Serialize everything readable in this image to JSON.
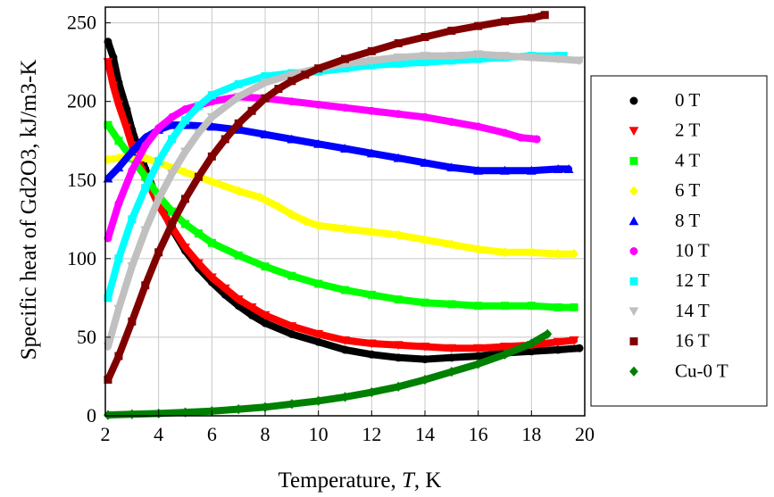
{
  "chart_data": {
    "type": "scatter",
    "title": "",
    "xlabel": {
      "prefix": "Temperature, ",
      "italic": "T",
      "suffix": ", K"
    },
    "ylabel": "Specific heat of Gd2O3, kJ/m3-K",
    "xlim": [
      2,
      20
    ],
    "ylim": [
      0,
      260
    ],
    "xticks": [
      2,
      4,
      6,
      8,
      10,
      12,
      14,
      16,
      18,
      20
    ],
    "yticks": [
      0,
      50,
      100,
      150,
      200,
      250
    ],
    "grid": true,
    "legend_position": "right",
    "series": [
      {
        "name": "0 T",
        "color": "#000000",
        "marker": "circle",
        "points": [
          [
            2.1,
            238
          ],
          [
            2.3,
            228
          ],
          [
            2.5,
            212
          ],
          [
            2.8,
            195
          ],
          [
            3,
            182
          ],
          [
            3.5,
            157
          ],
          [
            4,
            136
          ],
          [
            4.5,
            119
          ],
          [
            5,
            105
          ],
          [
            5.5,
            94
          ],
          [
            6,
            85
          ],
          [
            6.5,
            77
          ],
          [
            7,
            70
          ],
          [
            7.5,
            64
          ],
          [
            8,
            59
          ],
          [
            9,
            52
          ],
          [
            10,
            47
          ],
          [
            11,
            42
          ],
          [
            12,
            39
          ],
          [
            13,
            37
          ],
          [
            14,
            36
          ],
          [
            15,
            37
          ],
          [
            16,
            38
          ],
          [
            17,
            40
          ],
          [
            18,
            41
          ],
          [
            19,
            42
          ],
          [
            19.8,
            43
          ]
        ]
      },
      {
        "name": "2 T",
        "color": "#ff0000",
        "marker": "triangle-down",
        "points": [
          [
            2.1,
            225
          ],
          [
            2.3,
            210
          ],
          [
            2.5,
            198
          ],
          [
            2.8,
            183
          ],
          [
            3,
            172
          ],
          [
            3.5,
            152
          ],
          [
            4,
            134
          ],
          [
            4.5,
            120
          ],
          [
            5,
            107
          ],
          [
            5.5,
            97
          ],
          [
            6,
            88
          ],
          [
            6.5,
            81
          ],
          [
            7,
            74
          ],
          [
            7.5,
            69
          ],
          [
            8,
            64
          ],
          [
            9,
            57
          ],
          [
            10,
            52
          ],
          [
            11,
            48
          ],
          [
            12,
            46
          ],
          [
            13,
            45
          ],
          [
            14,
            44
          ],
          [
            15,
            43
          ],
          [
            16,
            43
          ],
          [
            17,
            44
          ],
          [
            18,
            45
          ],
          [
            19,
            47
          ],
          [
            19.6,
            48
          ]
        ]
      },
      {
        "name": "4 T",
        "color": "#00ff00",
        "marker": "square",
        "points": [
          [
            2.1,
            185
          ],
          [
            2.5,
            175
          ],
          [
            3,
            164
          ],
          [
            3.5,
            152
          ],
          [
            4,
            140
          ],
          [
            4.5,
            130
          ],
          [
            5,
            122
          ],
          [
            5.5,
            116
          ],
          [
            6,
            110
          ],
          [
            7,
            102
          ],
          [
            8,
            95
          ],
          [
            9,
            89
          ],
          [
            10,
            84
          ],
          [
            11,
            80
          ],
          [
            12,
            77
          ],
          [
            13,
            74
          ],
          [
            14,
            72
          ],
          [
            15,
            71
          ],
          [
            16,
            70
          ],
          [
            17,
            70
          ],
          [
            18,
            70
          ],
          [
            19,
            69
          ],
          [
            19.6,
            69
          ]
        ]
      },
      {
        "name": "6 T",
        "color": "#ffff00",
        "marker": "diamond",
        "points": [
          [
            2.1,
            163
          ],
          [
            2.5,
            164
          ],
          [
            3,
            165
          ],
          [
            3.5,
            164
          ],
          [
            4,
            161
          ],
          [
            5,
            155
          ],
          [
            6,
            149
          ],
          [
            7,
            143
          ],
          [
            7.8,
            139
          ],
          [
            8.5,
            133
          ],
          [
            9,
            128
          ],
          [
            9.5,
            124
          ],
          [
            10,
            121
          ],
          [
            11,
            119
          ],
          [
            12,
            117
          ],
          [
            13,
            115
          ],
          [
            14,
            112
          ],
          [
            15,
            109
          ],
          [
            16,
            106
          ],
          [
            17,
            104
          ],
          [
            18,
            104
          ],
          [
            19,
            103
          ],
          [
            19.6,
            103
          ]
        ]
      },
      {
        "name": "8 T",
        "color": "#0000ff",
        "marker": "triangle-up",
        "points": [
          [
            2.1,
            151
          ],
          [
            2.5,
            158
          ],
          [
            3,
            168
          ],
          [
            3.5,
            177
          ],
          [
            4,
            182
          ],
          [
            4.5,
            185
          ],
          [
            5,
            185
          ],
          [
            6,
            184
          ],
          [
            7,
            182
          ],
          [
            8,
            179
          ],
          [
            9,
            176
          ],
          [
            10,
            173
          ],
          [
            11,
            170
          ],
          [
            12,
            167
          ],
          [
            13,
            164
          ],
          [
            14,
            161
          ],
          [
            15,
            158
          ],
          [
            16,
            156
          ],
          [
            17,
            156
          ],
          [
            18,
            156
          ],
          [
            19,
            157
          ],
          [
            19.4,
            157
          ]
        ]
      },
      {
        "name": "10 T",
        "color": "#ff00ff",
        "marker": "circle",
        "points": [
          [
            2.1,
            113
          ],
          [
            2.5,
            135
          ],
          [
            3,
            156
          ],
          [
            3.5,
            172
          ],
          [
            4,
            183
          ],
          [
            4.5,
            190
          ],
          [
            5,
            195
          ],
          [
            6,
            200
          ],
          [
            7,
            203
          ],
          [
            8,
            202
          ],
          [
            9,
            200
          ],
          [
            10,
            198
          ],
          [
            11,
            196
          ],
          [
            12,
            194
          ],
          [
            13,
            192
          ],
          [
            14,
            190
          ],
          [
            15,
            187
          ],
          [
            16,
            184
          ],
          [
            17,
            180
          ],
          [
            17.6,
            177
          ],
          [
            18.2,
            176
          ]
        ]
      },
      {
        "name": "12 T",
        "color": "#00ffff",
        "marker": "square",
        "points": [
          [
            2.1,
            75
          ],
          [
            2.5,
            100
          ],
          [
            3,
            125
          ],
          [
            3.5,
            145
          ],
          [
            4,
            162
          ],
          [
            4.5,
            176
          ],
          [
            5,
            188
          ],
          [
            5.5,
            197
          ],
          [
            6,
            204
          ],
          [
            7,
            211
          ],
          [
            8,
            216
          ],
          [
            9,
            218
          ],
          [
            10,
            219
          ],
          [
            11,
            221
          ],
          [
            12,
            223
          ],
          [
            13,
            224
          ],
          [
            14,
            225
          ],
          [
            15,
            226
          ],
          [
            16,
            227
          ],
          [
            17,
            228
          ],
          [
            18,
            229
          ],
          [
            19,
            229
          ],
          [
            19.2,
            229
          ]
        ]
      },
      {
        "name": "14 T",
        "color": "#c0c0c0",
        "marker": "triangle-down",
        "points": [
          [
            2.1,
            44
          ],
          [
            2.5,
            68
          ],
          [
            3,
            95
          ],
          [
            3.5,
            118
          ],
          [
            4,
            138
          ],
          [
            4.5,
            154
          ],
          [
            5,
            168
          ],
          [
            5.5,
            180
          ],
          [
            6,
            190
          ],
          [
            7,
            203
          ],
          [
            8,
            212
          ],
          [
            9,
            217
          ],
          [
            10,
            221
          ],
          [
            11,
            224
          ],
          [
            12,
            226
          ],
          [
            13,
            228
          ],
          [
            14,
            229
          ],
          [
            15,
            229
          ],
          [
            16,
            230
          ],
          [
            17,
            229
          ],
          [
            18,
            228
          ],
          [
            19,
            227
          ],
          [
            19.8,
            226
          ]
        ]
      },
      {
        "name": "16 T",
        "color": "#800000",
        "marker": "square",
        "points": [
          [
            2.1,
            23
          ],
          [
            2.5,
            38
          ],
          [
            3,
            60
          ],
          [
            3.5,
            83
          ],
          [
            4,
            104
          ],
          [
            4.5,
            122
          ],
          [
            5,
            138
          ],
          [
            5.5,
            152
          ],
          [
            6,
            165
          ],
          [
            6.5,
            176
          ],
          [
            7,
            186
          ],
          [
            7.5,
            194
          ],
          [
            8,
            202
          ],
          [
            8.5,
            208
          ],
          [
            9,
            213
          ],
          [
            9.5,
            217
          ],
          [
            10,
            221
          ],
          [
            11,
            227
          ],
          [
            12,
            232
          ],
          [
            13,
            237
          ],
          [
            14,
            241
          ],
          [
            15,
            245
          ],
          [
            16,
            248
          ],
          [
            17,
            251
          ],
          [
            18,
            253
          ],
          [
            18.5,
            255
          ]
        ]
      },
      {
        "name": "Cu-0 T",
        "color": "#008000",
        "marker": "diamond",
        "points": [
          [
            2.1,
            0.5
          ],
          [
            3,
            1
          ],
          [
            4,
            1.5
          ],
          [
            5,
            2.2
          ],
          [
            6,
            3
          ],
          [
            7,
            4.2
          ],
          [
            8,
            5.5
          ],
          [
            9,
            7.5
          ],
          [
            10,
            9.5
          ],
          [
            11,
            12
          ],
          [
            12,
            15
          ],
          [
            13,
            18.5
          ],
          [
            14,
            23
          ],
          [
            15,
            28
          ],
          [
            16,
            33
          ],
          [
            17,
            39
          ],
          [
            18,
            46
          ],
          [
            18.6,
            52
          ]
        ]
      }
    ]
  }
}
